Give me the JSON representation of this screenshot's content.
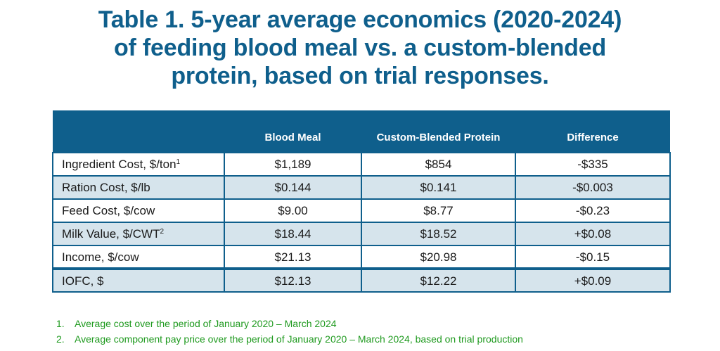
{
  "title": {
    "line1": "Table 1. 5-year average economics (2020-2024)",
    "line2": "of feeding blood meal vs. a custom-blended",
    "line3": "protein, based on trial responses."
  },
  "table": {
    "headers": [
      "",
      "Blood Meal",
      "Custom-Blended Protein",
      "Difference"
    ],
    "rows": [
      {
        "label": "Ingredient Cost, $/ton",
        "sup": "1",
        "blood_meal": "$1,189",
        "custom": "$854",
        "difference": "-$335"
      },
      {
        "label": "Ration Cost, $/lb",
        "sup": "",
        "blood_meal": "$0.144",
        "custom": "$0.141",
        "difference": "-$0.003"
      },
      {
        "label": "Feed Cost, $/cow",
        "sup": "",
        "blood_meal": "$9.00",
        "custom": "$8.77",
        "difference": "-$0.23"
      },
      {
        "label": "Milk Value, $/CWT",
        "sup": "2",
        "blood_meal": "$18.44",
        "custom": "$18.52",
        "difference": "+$0.08"
      },
      {
        "label": "Income, $/cow",
        "sup": "",
        "blood_meal": "$21.13",
        "custom": "$20.98",
        "difference": "-$0.15"
      },
      {
        "label": "IOFC, $",
        "sup": "",
        "blood_meal": "$12.13",
        "custom": "$12.22",
        "difference": "+$0.09"
      }
    ]
  },
  "footnotes": [
    {
      "num": "1.",
      "text": "Average cost over the period of January 2020 – March 2024"
    },
    {
      "num": "2.",
      "text": "Average component pay price over the period of January 2020 – March 2024, based on trial production"
    }
  ],
  "colors": {
    "header_blue": "#0f5f8c",
    "row_shade": "#d6e4ec",
    "footnote_green": "#1f9a1f"
  }
}
